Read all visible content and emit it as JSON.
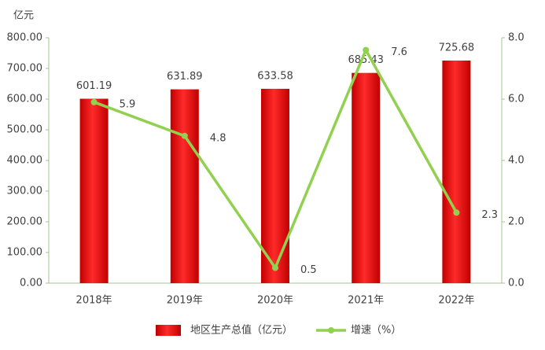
{
  "chart_data": {
    "type": "bar",
    "y_unit": "亿元",
    "categories": [
      "2018年",
      "2019年",
      "2020年",
      "2021年",
      "2022年"
    ],
    "series": [
      {
        "name": "地区生产总值（亿元）",
        "type": "bar",
        "color": "#ff0000",
        "values": [
          601.19,
          631.89,
          633.58,
          685.43,
          725.68
        ]
      },
      {
        "name": "增速（%）",
        "type": "line",
        "axis": "y2",
        "color": "#92d050",
        "values": [
          5.9,
          4.8,
          0.5,
          7.6,
          2.3
        ]
      }
    ],
    "ylim": [
      0,
      800
    ],
    "yticks": [
      {
        "value": 0,
        "label": "0.00"
      },
      {
        "value": 100,
        "label": "100.00"
      },
      {
        "value": 200,
        "label": "200.00"
      },
      {
        "value": 300,
        "label": "300.00"
      },
      {
        "value": 400,
        "label": "400.00"
      },
      {
        "value": 500,
        "label": "500.00"
      },
      {
        "value": 600,
        "label": "600.00"
      },
      {
        "value": 700,
        "label": "700.00"
      },
      {
        "value": 800,
        "label": "800.00"
      }
    ],
    "y2lim": [
      0,
      8
    ],
    "y2ticks": [
      {
        "value": 0,
        "label": "0.0"
      },
      {
        "value": 2,
        "label": "2.0"
      },
      {
        "value": 4,
        "label": "4.0"
      },
      {
        "value": 6,
        "label": "6.0"
      },
      {
        "value": 8,
        "label": "8.0"
      }
    ],
    "grid": false,
    "legend": "bottom"
  }
}
